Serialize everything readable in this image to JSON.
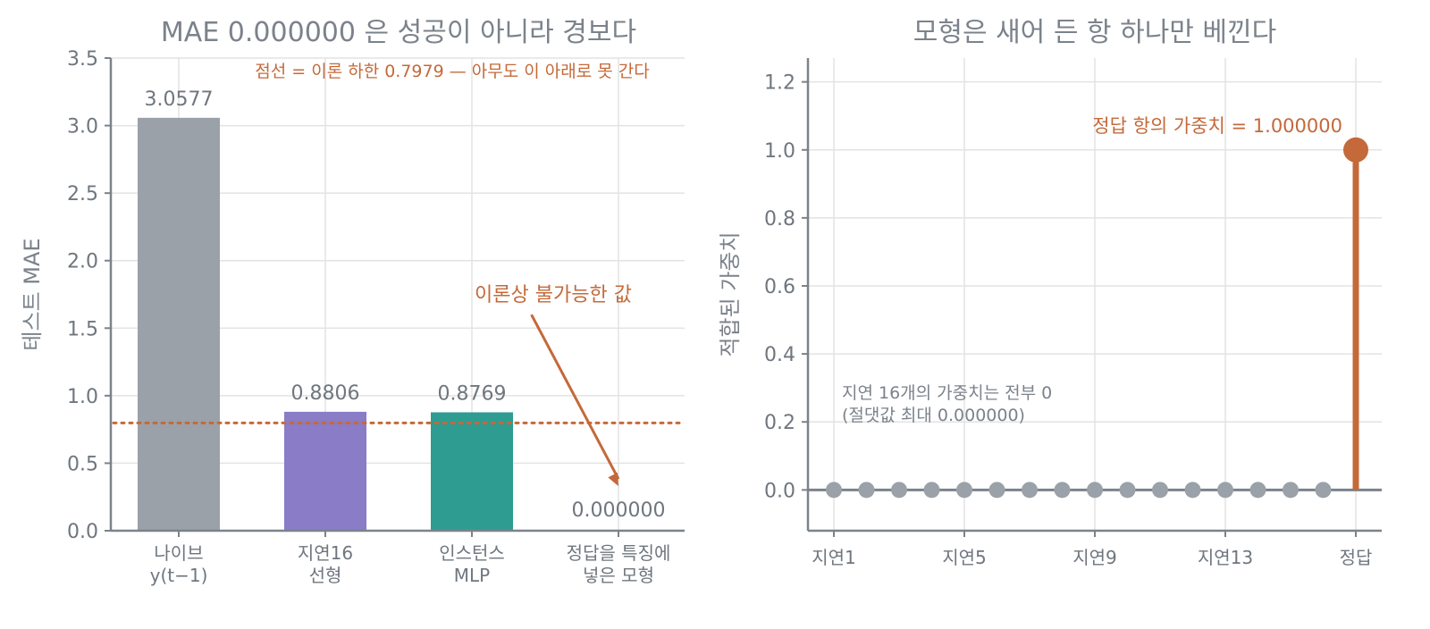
{
  "colors": {
    "accent": "#c4693a",
    "axis": "#7b828b",
    "grid": "#e3e3e3",
    "text": "#6f767e",
    "naive": "#9aa1a8",
    "linear": "#8a7cc6",
    "mlp": "#2e9c91",
    "stem_gray": "#9aa1a8"
  },
  "chart_data": [
    {
      "type": "bar",
      "title": "MAE 0.000000 은 성공이 아니라 경보다",
      "ylabel": "테스트 MAE",
      "ylim": [
        0,
        3.5
      ],
      "yticks": [
        0.0,
        0.5,
        1.0,
        1.5,
        2.0,
        2.5,
        3.0,
        3.5
      ],
      "ytick_labels": [
        "0.0",
        "0.5",
        "1.0",
        "1.5",
        "2.0",
        "2.5",
        "3.0",
        "3.5"
      ],
      "categories": [
        [
          "나이브",
          "y(t−1)"
        ],
        [
          "지연16",
          "선형"
        ],
        [
          "인스턴스",
          "MLP"
        ],
        [
          "정답을 특징에",
          "넣은 모형"
        ]
      ],
      "values": [
        3.0577,
        0.8806,
        0.8769,
        0.0
      ],
      "value_labels": [
        "3.0577",
        "0.8806",
        "0.8769",
        "0.000000"
      ],
      "bar_colors": [
        "#9aa1a8",
        "#8a7cc6",
        "#2e9c91",
        "#c4693a"
      ],
      "reference_line": {
        "value": 0.7979,
        "style": "dotted",
        "label": "점선 = 이론 하한 0.7979 — 아무도 이 아래로 못 간다"
      },
      "annotation": {
        "text": "이론상 불가능한 값",
        "text_at": {
          "category": 2.65,
          "value": 1.7
        },
        "arrow_from": {
          "category": 2.65,
          "value": 1.6
        },
        "arrow_to": {
          "category": 3.0,
          "value": 0.33
        }
      },
      "grid": true,
      "legend": "none"
    },
    {
      "type": "stem",
      "title": "모형은 새어 든 항 하나만 베낀다",
      "ylabel": "적합된 가중치",
      "ylim": [
        -0.12,
        1.27
      ],
      "yticks": [
        0.0,
        0.2,
        0.4,
        0.6,
        0.8,
        1.0,
        1.2
      ],
      "ytick_labels": [
        "0.0",
        "0.2",
        "0.4",
        "0.6",
        "0.8",
        "1.0",
        "1.2"
      ],
      "x": [
        1,
        2,
        3,
        4,
        5,
        6,
        7,
        8,
        9,
        10,
        11,
        12,
        13,
        14,
        15,
        16,
        17
      ],
      "xticks": [
        1,
        5,
        9,
        13,
        17
      ],
      "xtick_labels": [
        "지연1",
        "지연5",
        "지연9",
        "지연13",
        "정답"
      ],
      "values": [
        0,
        0,
        0,
        0,
        0,
        0,
        0,
        0,
        0,
        0,
        0,
        0,
        0,
        0,
        0,
        0,
        1.0
      ],
      "highlight": {
        "index": 16,
        "label": "정답 항의 가중치 = 1.000000"
      },
      "note": [
        "지연 16개의 가중치는 전부 0",
        "(절댓값 최대 0.000000)"
      ],
      "grid": true,
      "legend": "none"
    }
  ]
}
